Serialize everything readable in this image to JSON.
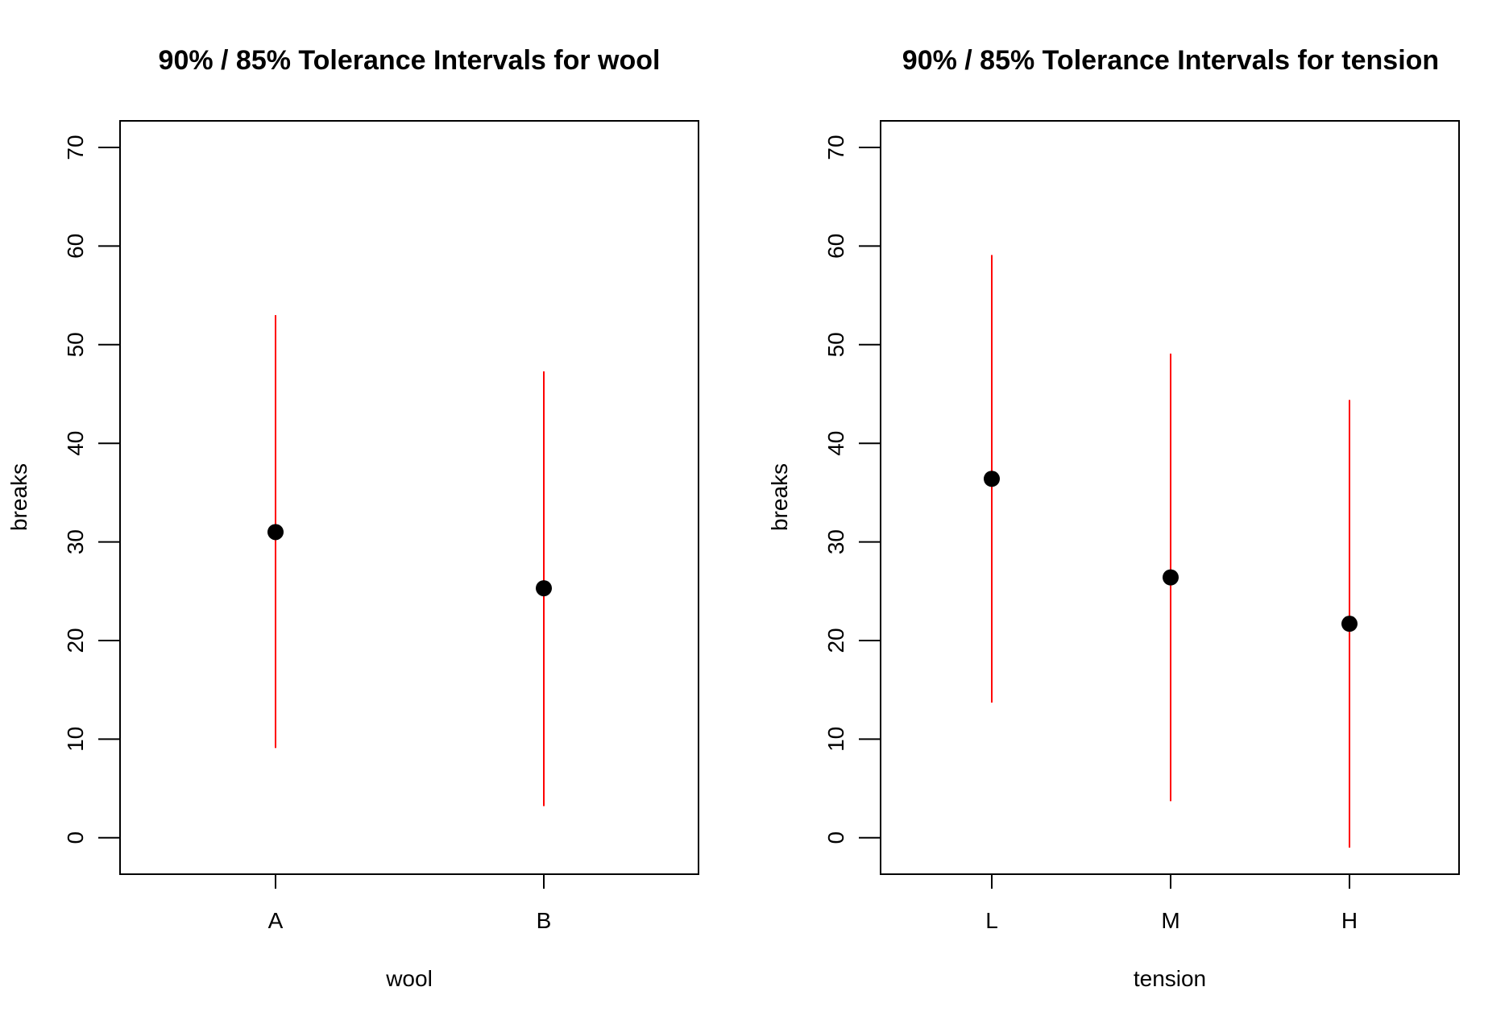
{
  "chart_data": [
    {
      "type": "scatter",
      "title": "90% / 85% Tolerance Intervals for wool",
      "xlabel": "wool",
      "ylabel": "breaks",
      "categories": [
        "A",
        "B"
      ],
      "estimates": [
        31.0,
        25.3
      ],
      "lower": [
        9.1,
        3.2
      ],
      "upper": [
        53.0,
        47.3
      ],
      "ylim": [
        -3.7,
        72.7
      ],
      "yticks": [
        0,
        10,
        20,
        30,
        40,
        50,
        60,
        70
      ],
      "ytick_labels": [
        "0",
        "10",
        "20",
        "30",
        "40",
        "50",
        "60",
        "70"
      ],
      "point_color": "#000000",
      "interval_color": "#ff0000",
      "grid": false
    },
    {
      "type": "scatter",
      "title": "90% / 85% Tolerance Intervals for tension",
      "xlabel": "tension",
      "ylabel": "breaks",
      "categories": [
        "L",
        "M",
        "H"
      ],
      "estimates": [
        36.4,
        26.4,
        21.7
      ],
      "lower": [
        13.7,
        3.7,
        -1.0
      ],
      "upper": [
        59.1,
        49.1,
        44.4
      ],
      "ylim": [
        -3.7,
        72.7
      ],
      "yticks": [
        0,
        10,
        20,
        30,
        40,
        50,
        60,
        70
      ],
      "ytick_labels": [
        "0",
        "10",
        "20",
        "30",
        "40",
        "50",
        "60",
        "70"
      ],
      "point_color": "#000000",
      "interval_color": "#ff0000",
      "grid": false
    }
  ]
}
